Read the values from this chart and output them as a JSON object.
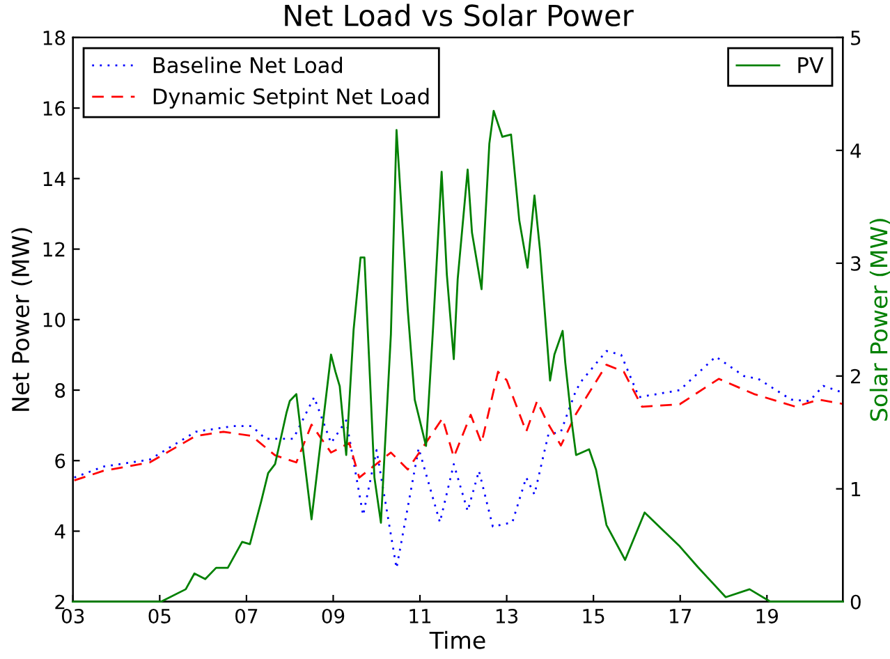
{
  "chart_data": {
    "type": "line",
    "title": "Net Load vs Solar Power",
    "xlabel": "Time",
    "ylabel": "Net Power (MW)",
    "y2label": "Solar Power (MW)",
    "xlim": [
      3,
      20.75
    ],
    "xticks": [
      {
        "value": 3,
        "label": "03"
      },
      {
        "value": 5,
        "label": "05"
      },
      {
        "value": 7,
        "label": "07"
      },
      {
        "value": 9,
        "label": "09"
      },
      {
        "value": 11,
        "label": "11"
      },
      {
        "value": 13,
        "label": "13"
      },
      {
        "value": 15,
        "label": "15"
      },
      {
        "value": 17,
        "label": "17"
      },
      {
        "value": 19,
        "label": "19"
      }
    ],
    "ylim": [
      2,
      18
    ],
    "yticks": [
      2,
      4,
      6,
      8,
      10,
      12,
      14,
      16,
      18
    ],
    "y2lim": [
      0,
      5
    ],
    "y2ticks": [
      0,
      1,
      2,
      3,
      4,
      5
    ],
    "grid": false,
    "legend": "top left",
    "series": [
      {
        "name": "Baseline Net Load",
        "color": "#0000ff",
        "line_style": "dotted",
        "x": [
          3.03,
          3.7,
          4.77,
          5.83,
          6.7,
          7.12,
          7.44,
          8.08,
          8.56,
          8.95,
          9.3,
          9.69,
          10.0,
          10.46,
          10.97,
          11.46,
          11.78,
          12.1,
          12.36,
          12.68,
          13.13,
          13.45,
          13.64,
          13.96,
          14.25,
          14.4,
          14.6,
          14.74,
          15.3,
          15.64,
          16.05,
          16.99,
          17.82,
          18.47,
          18.8,
          19.56,
          19.98,
          20.3,
          20.75
        ],
        "values": [
          5.52,
          5.83,
          6.03,
          6.82,
          6.98,
          6.98,
          6.62,
          6.62,
          7.8,
          6.5,
          7.14,
          4.45,
          6.3,
          2.95,
          6.35,
          4.25,
          5.9,
          4.57,
          5.71,
          4.13,
          4.25,
          5.52,
          5.04,
          6.74,
          6.82,
          7.33,
          8.0,
          8.28,
          9.11,
          9.0,
          7.8,
          8.0,
          8.95,
          8.4,
          8.32,
          7.73,
          7.69,
          8.12,
          7.93
        ]
      },
      {
        "name": "Dynamic Setpint Net Load",
        "color": "#ff0000",
        "line_style": "dashed",
        "x": [
          3.03,
          3.7,
          4.77,
          5.83,
          6.47,
          7.12,
          7.66,
          8.15,
          8.5,
          8.95,
          9.37,
          9.6,
          10.0,
          10.33,
          10.72,
          11.52,
          11.78,
          12.17,
          12.42,
          12.8,
          13.0,
          13.45,
          13.7,
          13.93,
          14.25,
          14.6,
          15.3,
          15.7,
          16.12,
          16.99,
          17.89,
          18.7,
          19.66,
          20.2,
          20.75
        ],
        "values": [
          5.44,
          5.71,
          5.95,
          6.7,
          6.82,
          6.7,
          6.15,
          5.95,
          7.02,
          6.23,
          6.5,
          5.52,
          5.91,
          6.23,
          5.75,
          7.2,
          6.1,
          7.3,
          6.5,
          8.52,
          8.28,
          6.82,
          7.69,
          7.1,
          6.43,
          7.33,
          8.72,
          8.52,
          7.53,
          7.6,
          8.32,
          7.89,
          7.53,
          7.73,
          7.61
        ]
      },
      {
        "name": "PV",
        "color": "#008000",
        "line_style": "solid",
        "axis": "y2",
        "x": [
          3.0,
          5.03,
          5.6,
          5.8,
          6.05,
          6.3,
          6.57,
          6.9,
          7.08,
          7.34,
          7.5,
          7.66,
          7.92,
          8.0,
          8.15,
          8.5,
          8.95,
          9.05,
          9.15,
          9.3,
          9.47,
          9.63,
          9.72,
          9.85,
          9.95,
          10.1,
          10.33,
          10.46,
          10.72,
          10.88,
          11.14,
          11.3,
          11.5,
          11.62,
          11.78,
          11.87,
          12.1,
          12.2,
          12.42,
          12.6,
          12.7,
          12.9,
          13.1,
          13.29,
          13.48,
          13.64,
          13.77,
          14.0,
          14.1,
          14.29,
          14.35,
          14.5,
          14.6,
          14.9,
          15.06,
          15.3,
          15.73,
          16.18,
          16.99,
          17.4,
          18.05,
          18.6,
          19.08,
          20.75
        ],
        "values": [
          0,
          0,
          0.11,
          0.25,
          0.2,
          0.3,
          0.3,
          0.53,
          0.51,
          0.89,
          1.14,
          1.22,
          1.67,
          1.78,
          1.84,
          0.73,
          2.19,
          2.04,
          1.91,
          1.3,
          2.41,
          3.05,
          3.05,
          1.96,
          1.1,
          0.7,
          2.37,
          4.18,
          2.58,
          1.79,
          1.38,
          2.41,
          3.81,
          2.9,
          2.15,
          2.86,
          3.83,
          3.27,
          2.77,
          4.06,
          4.35,
          4.12,
          4.14,
          3.38,
          2.96,
          3.6,
          3.11,
          1.96,
          2.19,
          2.4,
          2.12,
          1.59,
          1.3,
          1.35,
          1.17,
          0.68,
          0.37,
          0.79,
          0.49,
          0.31,
          0.04,
          0.11,
          0,
          0
        ]
      }
    ]
  }
}
